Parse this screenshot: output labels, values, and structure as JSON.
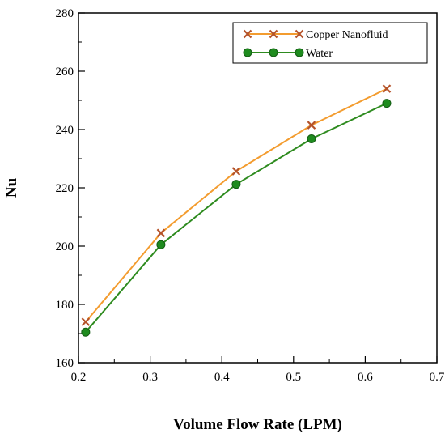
{
  "chart_data": {
    "type": "line",
    "xlabel": "Volume Flow Rate (LPM)",
    "ylabel": "Nu",
    "xlim": [
      0.2,
      0.7
    ],
    "ylim": [
      160,
      280
    ],
    "xticks": [
      "0.2",
      "0.3",
      "0.4",
      "0.5",
      "0.6",
      "0.7"
    ],
    "yticks": [
      "160",
      "180",
      "200",
      "220",
      "240",
      "260",
      "280"
    ],
    "grid": false,
    "legend_position": "top-right",
    "x": [
      0.21,
      0.315,
      0.42,
      0.525,
      0.63
    ],
    "series": [
      {
        "name": "Copper Nanofluid",
        "values": [
          174,
          204.5,
          225.7,
          241.5,
          254
        ],
        "color": "#F39C2F",
        "marker": "x",
        "marker_color": "#B5532A"
      },
      {
        "name": "Water",
        "values": [
          170.5,
          200.5,
          221.2,
          236.8,
          249
        ],
        "color": "#2E8B1F",
        "marker": "circle",
        "marker_color": "#1E8B1E"
      }
    ]
  }
}
